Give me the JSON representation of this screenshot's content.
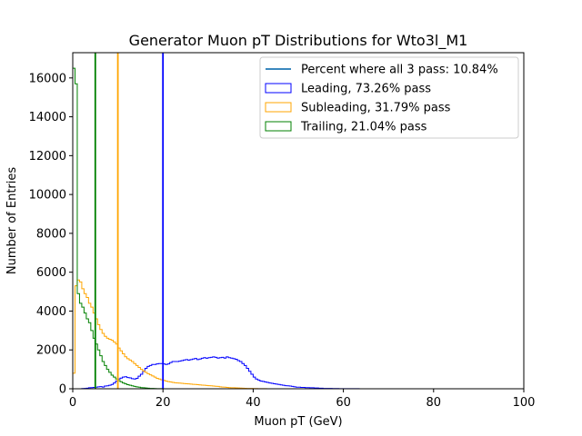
{
  "chart_data": {
    "type": "histogram",
    "title": "Generator Muon pT Distributions for Wto3l_M1",
    "xlabel": "Muon pT (GeV)",
    "ylabel": "Number of Entries",
    "xlim": [
      0,
      100
    ],
    "ylim": [
      0,
      17300
    ],
    "x_ticks": [
      0,
      20,
      40,
      60,
      80,
      100
    ],
    "x_tick_labels": [
      "0",
      "20",
      "40",
      "60",
      "80",
      "100"
    ],
    "y_ticks": [
      0,
      2000,
      4000,
      6000,
      8000,
      10000,
      12000,
      14000,
      16000
    ],
    "y_tick_labels": [
      "0",
      "2000",
      "4000",
      "6000",
      "8000",
      "10000",
      "12000",
      "14000",
      "16000"
    ],
    "grid": false,
    "legend_position": "top-right",
    "legend": [
      {
        "label": "Percent where all 3 pass: 10.84%",
        "kind": "line",
        "color": "#1f77b4"
      },
      {
        "label": "Leading, 73.26% pass",
        "kind": "patch",
        "color": "#0000ff"
      },
      {
        "label": "Subleading, 31.79% pass",
        "kind": "patch",
        "color": "#ffa500"
      },
      {
        "label": "Trailing, 21.04% pass",
        "kind": "patch",
        "color": "#008000"
      }
    ],
    "bin_width": 0.5,
    "series": [
      {
        "name": "Leading, 73.26% pass",
        "color": "#0000ff",
        "cut": 20,
        "values": [
          0,
          0,
          0,
          0,
          10,
          20,
          30,
          50,
          60,
          70,
          80,
          100,
          110,
          90,
          140,
          150,
          180,
          220,
          300,
          400,
          500,
          550,
          600,
          620,
          580,
          560,
          520,
          500,
          540,
          650,
          750,
          900,
          1050,
          1150,
          1200,
          1250,
          1250,
          1280,
          1300,
          1300,
          1280,
          1250,
          1280,
          1350,
          1400,
          1400,
          1400,
          1420,
          1450,
          1480,
          1500,
          1470,
          1500,
          1530,
          1560,
          1500,
          1530,
          1570,
          1600,
          1570,
          1600,
          1620,
          1640,
          1620,
          1580,
          1600,
          1620,
          1580,
          1640,
          1600,
          1580,
          1550,
          1520,
          1450,
          1400,
          1300,
          1200,
          1050,
          900,
          750,
          600,
          500,
          450,
          400,
          380,
          350,
          330,
          300,
          280,
          260,
          240,
          220,
          200,
          180,
          160,
          150,
          140,
          120,
          100,
          80,
          80,
          70,
          70,
          60,
          60,
          50,
          50,
          40,
          40,
          30,
          30,
          20,
          20,
          15,
          15,
          10,
          10,
          10,
          8,
          8,
          5,
          5,
          5,
          5,
          5,
          4,
          4,
          3,
          3,
          2
        ]
      },
      {
        "name": "Subleading, 31.79% pass",
        "color": "#ffa500",
        "cut": 10,
        "values": [
          800,
          5300,
          5600,
          5500,
          5150,
          4900,
          4700,
          4400,
          4200,
          3900,
          3600,
          3300,
          3050,
          2850,
          2700,
          2600,
          2550,
          2500,
          2400,
          2300,
          2100,
          1950,
          1800,
          1650,
          1550,
          1480,
          1400,
          1300,
          1200,
          1100,
          1000,
          920,
          850,
          780,
          720,
          660,
          600,
          540,
          500,
          460,
          430,
          400,
          370,
          350,
          330,
          310,
          300,
          290,
          280,
          270,
          260,
          250,
          240,
          230,
          220,
          210,
          200,
          190,
          180,
          170,
          160,
          150,
          140,
          130,
          120,
          100,
          90,
          80,
          70,
          60,
          55,
          50,
          45,
          40,
          35,
          30,
          25,
          20,
          18,
          15,
          12,
          10,
          8,
          6,
          5,
          4,
          3,
          2
        ]
      },
      {
        "name": "Trailing, 21.04% pass",
        "color": "#008000",
        "cut": 5,
        "values": [
          16500,
          15700,
          4900,
          4400,
          4200,
          3900,
          3600,
          3400,
          3000,
          2600,
          2300,
          2000,
          1700,
          1400,
          1200,
          1000,
          850,
          700,
          600,
          500,
          420,
          360,
          300,
          250,
          210,
          180,
          150,
          120,
          100,
          80,
          60,
          50,
          40,
          30,
          20,
          15,
          10,
          8,
          6,
          4,
          3,
          2,
          2,
          1,
          1
        ]
      }
    ]
  }
}
